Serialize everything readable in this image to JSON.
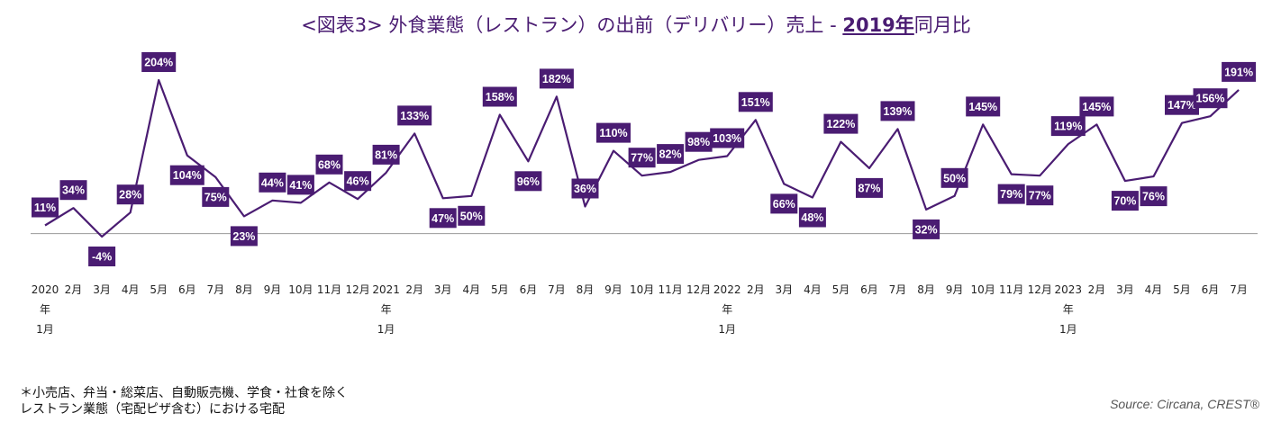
{
  "title": {
    "prefix": "<図表3> 外食業態（レストラン）の出前（デリバリー）売上 - ",
    "highlight": "2019年",
    "suffix": "同月比"
  },
  "chart_data": {
    "type": "line",
    "title": "<図表3> 外食業態（レストラン）の出前（デリバリー）売上 - 2019年同月比",
    "x": [
      "2020年1月",
      "2020年2月",
      "2020年3月",
      "2020年4月",
      "2020年5月",
      "2020年6月",
      "2020年7月",
      "2020年8月",
      "2020年9月",
      "2020年10月",
      "2020年11月",
      "2020年12月",
      "2021年1月",
      "2021年2月",
      "2021年3月",
      "2021年4月",
      "2021年5月",
      "2021年6月",
      "2021年7月",
      "2021年8月",
      "2021年9月",
      "2021年10月",
      "2021年11月",
      "2021年12月",
      "2022年1月",
      "2022年2月",
      "2022年3月",
      "2022年4月",
      "2022年5月",
      "2022年6月",
      "2022年7月",
      "2022年8月",
      "2022年9月",
      "2022年10月",
      "2022年11月",
      "2022年12月",
      "2023年1月",
      "2023年2月",
      "2023年3月",
      "2023年4月",
      "2023年5月",
      "2023年6月",
      "2023年7月"
    ],
    "tick_labels": [
      [
        "2020",
        "年",
        "1月"
      ],
      [
        "2月"
      ],
      [
        "3月"
      ],
      [
        "4月"
      ],
      [
        "5月"
      ],
      [
        "6月"
      ],
      [
        "7月"
      ],
      [
        "8月"
      ],
      [
        "9月"
      ],
      [
        "10月"
      ],
      [
        "11月"
      ],
      [
        "12月"
      ],
      [
        "2021",
        "年",
        "1月"
      ],
      [
        "2月"
      ],
      [
        "3月"
      ],
      [
        "4月"
      ],
      [
        "5月"
      ],
      [
        "6月"
      ],
      [
        "7月"
      ],
      [
        "8月"
      ],
      [
        "9月"
      ],
      [
        "10月"
      ],
      [
        "11月"
      ],
      [
        "12月"
      ],
      [
        "2022",
        "年",
        "1月"
      ],
      [
        "2月"
      ],
      [
        "3月"
      ],
      [
        "4月"
      ],
      [
        "5月"
      ],
      [
        "6月"
      ],
      [
        "7月"
      ],
      [
        "8月"
      ],
      [
        "9月"
      ],
      [
        "10月"
      ],
      [
        "11月"
      ],
      [
        "12月"
      ],
      [
        "2023",
        "年",
        "1月"
      ],
      [
        "2月"
      ],
      [
        "3月"
      ],
      [
        "4月"
      ],
      [
        "5月"
      ],
      [
        "6月"
      ],
      [
        "7月"
      ]
    ],
    "values": [
      11,
      34,
      -4,
      28,
      204,
      104,
      75,
      23,
      44,
      41,
      68,
      46,
      81,
      133,
      47,
      50,
      158,
      96,
      182,
      36,
      110,
      77,
      82,
      98,
      103,
      151,
      66,
      48,
      122,
      87,
      139,
      32,
      50,
      145,
      79,
      77,
      119,
      145,
      70,
      76,
      147,
      156,
      191
    ],
    "data_labels": [
      "11%",
      "34%",
      "-4%",
      "28%",
      "204%",
      "104%",
      "75%",
      "23%",
      "44%",
      "41%",
      "68%",
      "46%",
      "81%",
      "133%",
      "47%",
      "50%",
      "158%",
      "96%",
      "182%",
      "36%",
      "110%",
      "77%",
      "82%",
      "98%",
      "103%",
      "151%",
      "66%",
      "48%",
      "122%",
      "87%",
      "139%",
      "32%",
      "50%",
      "145%",
      "79%",
      "77%",
      "119%",
      "145%",
      "70%",
      "76%",
      "147%",
      "156%",
      "191%"
    ],
    "label_position": [
      "above",
      "above",
      "below",
      "above",
      "above",
      "below",
      "below",
      "below",
      "above",
      "above",
      "above",
      "above",
      "above",
      "above",
      "below",
      "below",
      "above",
      "below",
      "above",
      "above",
      "above",
      "above",
      "above",
      "above",
      "above",
      "above",
      "below",
      "below",
      "above",
      "below",
      "above",
      "below",
      "above",
      "above",
      "below",
      "below",
      "above",
      "above",
      "below",
      "below",
      "above",
      "above",
      "above"
    ],
    "ylim": [
      -10,
      215
    ],
    "grid": false,
    "legend": "none",
    "line_color": "#4a1c72",
    "label_bg": "#4a1c72",
    "label_text_color": "#ffffff",
    "baseline_color": "#999999"
  },
  "footnote": {
    "line1": "＊小売店、弁当・総菜店、自動販売機、学食・社食を除く",
    "line2": "レストラン業態（宅配ピザ含む）における宅配"
  },
  "source": "Source: Circana, CREST®"
}
